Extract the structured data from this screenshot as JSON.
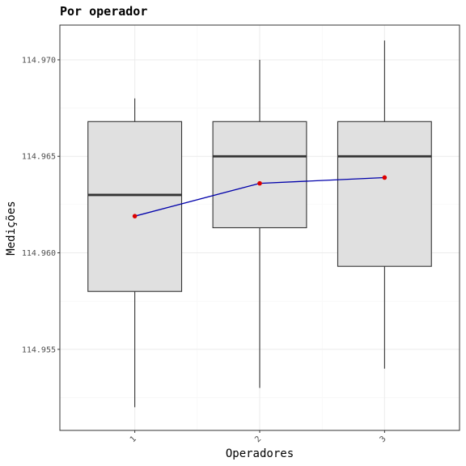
{
  "chart_data": {
    "type": "box",
    "title": "Por operador",
    "xlabel": "Operadores",
    "ylabel": "Medições",
    "categories": [
      "1",
      "2",
      "3"
    ],
    "y_ticks": [
      "114.955",
      "114.960",
      "114.965",
      "114.970"
    ],
    "ylim": [
      114.9508,
      114.9718
    ],
    "grid": true,
    "boxes": [
      {
        "category": "1",
        "min": 114.952,
        "q1": 114.958,
        "median": 114.963,
        "q3": 114.9668,
        "max": 114.968
      },
      {
        "category": "2",
        "min": 114.953,
        "q1": 114.9613,
        "median": 114.965,
        "q3": 114.9668,
        "max": 114.97
      },
      {
        "category": "3",
        "min": 114.954,
        "q1": 114.9593,
        "median": 114.965,
        "q3": 114.9668,
        "max": 114.971
      }
    ],
    "mean_series": {
      "values": [
        114.9619,
        114.9636,
        114.9639
      ],
      "line_color": "#0000aa",
      "point_color": "#dd0000"
    },
    "colors": {
      "box_fill": "#e0e0e0",
      "box_stroke": "#333333",
      "panel_border": "#333333",
      "grid_major": "#ebebeb",
      "grid_minor": "#f5f5f5"
    }
  }
}
